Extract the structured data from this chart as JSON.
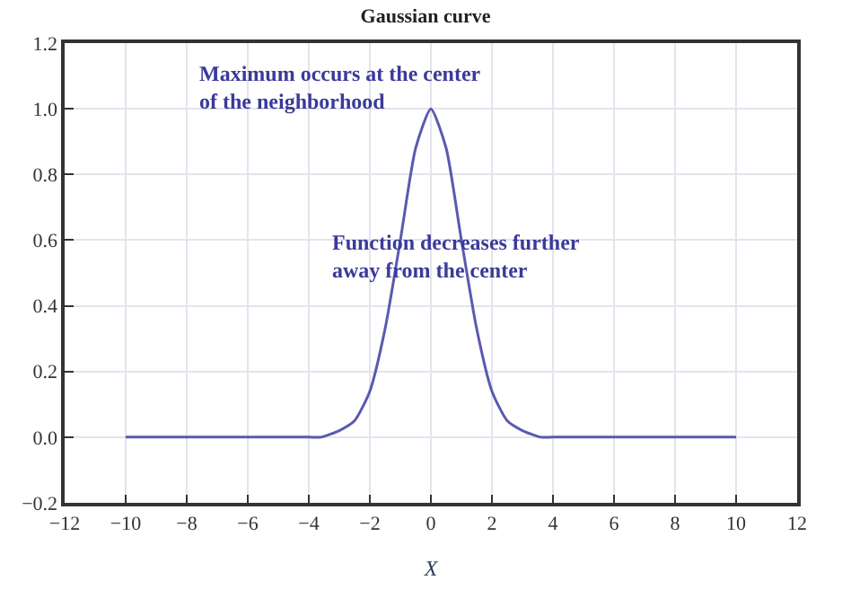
{
  "chart_data": {
    "type": "line",
    "title": "Gaussian curve",
    "xlabel": "X",
    "x": [
      -10,
      -4,
      -3.6,
      -3,
      -2.5,
      -2,
      -1.5,
      -1,
      -0.5,
      0,
      0.5,
      1,
      1.5,
      2,
      2.5,
      3,
      3.6,
      4,
      10
    ],
    "series": [
      {
        "color": "#5a5ab0",
        "values": [
          0,
          0,
          0,
          0.02,
          0.05,
          0.14,
          0.33,
          0.6,
          0.88,
          1.0,
          0.88,
          0.6,
          0.33,
          0.14,
          0.05,
          0.02,
          0,
          0,
          0
        ]
      }
    ],
    "xlim": [
      -12,
      12
    ],
    "xticks": [
      {
        "value": -12,
        "label": "−12"
      },
      {
        "value": -10,
        "label": "−10"
      },
      {
        "value": -8,
        "label": "−8"
      },
      {
        "value": -6,
        "label": "−6"
      },
      {
        "value": -4,
        "label": "−4"
      },
      {
        "value": -2,
        "label": "−2"
      },
      0,
      2,
      4,
      6,
      8,
      10,
      12
    ],
    "ylim": [
      -0.2,
      1.2
    ],
    "yticks": [
      {
        "value": -0.2,
        "label": "−0.2"
      },
      {
        "value": 0,
        "label": "0.0"
      },
      0.2,
      0.4,
      0.6,
      0.8,
      {
        "value": 1,
        "label": "1.0"
      },
      1.2
    ],
    "grid": true,
    "legend": false,
    "marker": "none",
    "line_style": "solid",
    "annotations": [
      "Maximum occurs at the center\nof the neighborhood",
      "Function decreases further\naway from the center"
    ]
  }
}
